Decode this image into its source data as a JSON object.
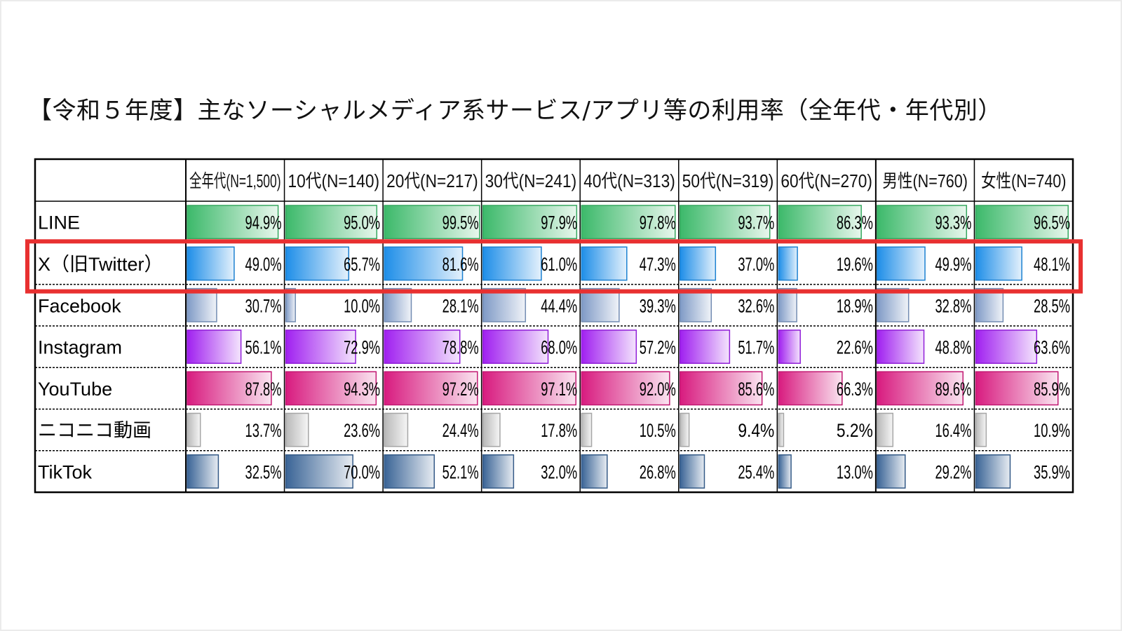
{
  "title": "【令和５年度】主なソーシャルメディア系サービス/アプリ等の利用率（全年代・年代別）",
  "chart_data": {
    "type": "table",
    "title": "【令和５年度】主なソーシャルメディア系サービス/アプリ等の利用率（全年代・年代別）",
    "columns": [
      "全年代(N=1,500)",
      "10代(N=140)",
      "20代(N=217)",
      "30代(N=241)",
      "40代(N=313)",
      "50代(N=319)",
      "60代(N=270)",
      "男性(N=760)",
      "女性(N=740)"
    ],
    "rows": [
      {
        "label": "LINE",
        "values": [
          94.9,
          95.0,
          99.5,
          97.9,
          97.8,
          93.7,
          86.3,
          93.3,
          96.5
        ],
        "labels": [
          "94.9%",
          "95.0%",
          "99.5%",
          "97.9%",
          "97.8%",
          "93.7%",
          "86.3%",
          "93.3%",
          "96.5%"
        ],
        "color": "#3cb96a",
        "highlighted": false
      },
      {
        "label": "X（旧Twitter）",
        "values": [
          49.0,
          65.7,
          81.6,
          61.0,
          47.3,
          37.0,
          19.6,
          49.9,
          48.1
        ],
        "labels": [
          "49.0%",
          "65.7%",
          "81.6%",
          "61.0%",
          "47.3%",
          "37.0%",
          "19.6%",
          "49.9%",
          "48.1%"
        ],
        "color": "#1e8ee8",
        "highlighted": true
      },
      {
        "label": "Facebook",
        "values": [
          30.7,
          10.0,
          28.1,
          44.4,
          39.3,
          32.6,
          18.9,
          32.8,
          28.5
        ],
        "labels": [
          "30.7%",
          "10.0%",
          "28.1%",
          "44.4%",
          "39.3%",
          "32.6%",
          "18.9%",
          "32.8%",
          "28.5%"
        ],
        "color": "#7f9ac6",
        "highlighted": false
      },
      {
        "label": "Instagram",
        "values": [
          56.1,
          72.9,
          78.8,
          68.0,
          57.2,
          51.7,
          22.6,
          48.8,
          63.6
        ],
        "labels": [
          "56.1%",
          "72.9%",
          "78.8%",
          "68.0%",
          "57.2%",
          "51.7%",
          "22.6%",
          "48.8%",
          "63.6%"
        ],
        "color": "#a020f0",
        "highlighted": false
      },
      {
        "label": "YouTube",
        "values": [
          87.8,
          94.3,
          97.2,
          97.1,
          92.0,
          85.6,
          66.3,
          89.6,
          85.9
        ],
        "labels": [
          "87.8%",
          "94.3%",
          "97.2%",
          "97.1%",
          "92.0%",
          "85.6%",
          "66.3%",
          "89.6%",
          "85.9%"
        ],
        "color": "#d81b7f",
        "highlighted": false
      },
      {
        "label": "ニコニコ動画",
        "values": [
          13.7,
          23.6,
          24.4,
          17.8,
          10.5,
          9.4,
          5.2,
          16.4,
          10.9
        ],
        "labels": [
          "13.7%",
          "23.6%",
          "24.4%",
          "17.8%",
          "10.5%",
          "9.4%",
          "5.2%",
          "16.4%",
          "10.9%"
        ],
        "color": "#b8b8b8",
        "highlighted": false
      },
      {
        "label": "TikTok",
        "values": [
          32.5,
          70.0,
          52.1,
          32.0,
          26.8,
          25.4,
          13.0,
          29.2,
          35.9
        ],
        "labels": [
          "32.5%",
          "70.0%",
          "52.1%",
          "32.0%",
          "26.8%",
          "25.4%",
          "13.0%",
          "29.2%",
          "35.9%"
        ],
        "color": "#3a6496",
        "highlighted": false
      }
    ],
    "value_range": [
      0,
      100
    ],
    "highlight_color": "#e83030"
  }
}
